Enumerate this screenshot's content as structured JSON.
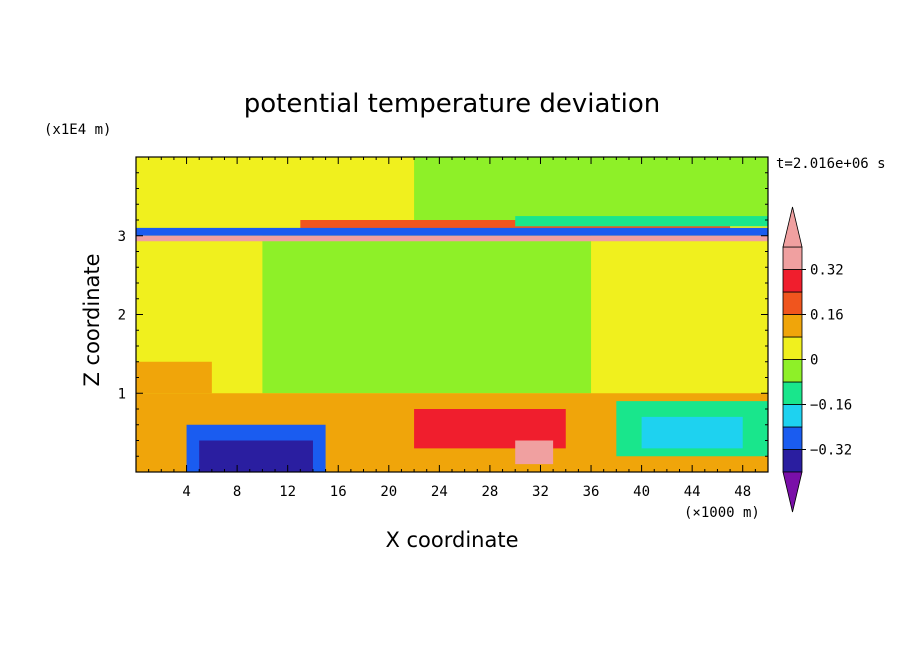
{
  "chart_data": {
    "type": "heatmap",
    "title": "potential temperature deviation",
    "xlabel": "X coordinate",
    "ylabel": "Z coordinate",
    "x_unit": "(×1000 m)",
    "y_unit": "(x1E4 m)",
    "time_label": "t=2.016e+06 s",
    "xlim": [
      0,
      50
    ],
    "ylim": [
      0,
      4
    ],
    "x_ticks": [
      4,
      8,
      12,
      16,
      20,
      24,
      28,
      32,
      36,
      40,
      44,
      48
    ],
    "y_ticks": [
      1,
      2,
      3
    ],
    "colorbar": {
      "levels": [
        -0.4,
        -0.32,
        -0.24,
        -0.16,
        -0.08,
        0,
        0.08,
        0.16,
        0.24,
        0.32,
        0.4
      ],
      "labels": [
        "0.32",
        "0.16",
        "0",
        "−0.16",
        "−0.32"
      ],
      "label_values": [
        0.32,
        0.16,
        0,
        -0.16,
        -0.32
      ],
      "colors": [
        "#7a0fa8",
        "#2a1ea0",
        "#1a5cf0",
        "#1ed2f0",
        "#19e68c",
        "#8ef028",
        "#f0f01e",
        "#f0a50a",
        "#f0551e",
        "#f01e2d",
        "#f0a0a0"
      ],
      "extend": "both"
    },
    "regions": [
      {
        "x": [
          0,
          50
        ],
        "z": [
          0,
          4
        ],
        "value": 0.04
      },
      {
        "x": [
          10,
          36
        ],
        "z": [
          1.0,
          3.0
        ],
        "value": -0.04
      },
      {
        "x": [
          22,
          50
        ],
        "z": [
          3.2,
          4.0
        ],
        "value": -0.04
      },
      {
        "x": [
          0,
          6
        ],
        "z": [
          1.0,
          1.4
        ],
        "value": 0.12
      },
      {
        "x": [
          13,
          47
        ],
        "z": [
          3.05,
          3.2
        ],
        "value": 0.2
      },
      {
        "x": [
          30,
          50
        ],
        "z": [
          3.12,
          3.25
        ],
        "value": -0.12
      },
      {
        "x": [
          0,
          50
        ],
        "z": [
          3.0,
          3.1
        ],
        "value": -0.28
      },
      {
        "x": [
          0,
          50
        ],
        "z": [
          2.93,
          3.0
        ],
        "value": 0.36
      },
      {
        "x": [
          0,
          50
        ],
        "z": [
          0,
          1.0
        ],
        "value": 0.12
      },
      {
        "x": [
          4,
          15
        ],
        "z": [
          0,
          0.6
        ],
        "value": -0.32
      },
      {
        "x": [
          5,
          14
        ],
        "z": [
          0,
          0.4
        ],
        "value": -0.36
      },
      {
        "x": [
          38,
          50
        ],
        "z": [
          0.2,
          0.9
        ],
        "value": -0.16
      },
      {
        "x": [
          40,
          48
        ],
        "z": [
          0.3,
          0.7
        ],
        "value": -0.24
      },
      {
        "x": [
          22,
          34
        ],
        "z": [
          0.3,
          0.8
        ],
        "value": 0.24
      },
      {
        "x": [
          30,
          33
        ],
        "z": [
          0.1,
          0.4
        ],
        "value": 0.36
      }
    ]
  }
}
